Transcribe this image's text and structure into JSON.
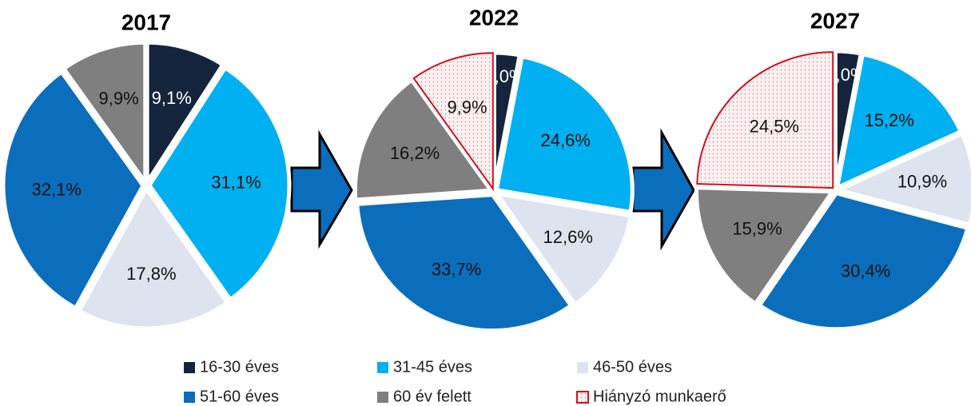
{
  "chart_data": [
    {
      "type": "pie",
      "title": "2017",
      "categories": [
        "16-30 éves",
        "31-45 éves",
        "46-50 éves",
        "51-60 éves",
        "60 év felett"
      ],
      "values": [
        9.1,
        31.1,
        17.8,
        32.1,
        9.9
      ],
      "value_labels": [
        "9,1%",
        "31,1%",
        "17,8%",
        "32,1%",
        "9,9%"
      ],
      "colors": [
        "#14243b",
        "#00b0f0",
        "#dde4ef",
        "#0a6ebd",
        "#7f7f7f"
      ],
      "hatched": [
        false,
        false,
        false,
        false,
        false
      ]
    },
    {
      "type": "pie",
      "title": "2022",
      "categories": [
        "16-30 éves",
        "31-45 éves",
        "46-50 éves",
        "51-60 éves",
        "60 év felett",
        "Hiányzó munkaerő"
      ],
      "values": [
        3.0,
        24.6,
        12.6,
        33.7,
        16.2,
        9.9
      ],
      "value_labels": [
        "3,0%",
        "24,6%",
        "12,6%",
        "33,7%",
        "16,2%",
        "9,9%"
      ],
      "colors": [
        "#14243b",
        "#00b0f0",
        "#dde4ef",
        "#0a6ebd",
        "#7f7f7f",
        "#d0101e"
      ],
      "hatched": [
        false,
        false,
        false,
        false,
        false,
        true
      ]
    },
    {
      "type": "pie",
      "title": "2027",
      "categories": [
        "16-30 éves",
        "31-45 éves",
        "46-50 éves",
        "51-60 éves",
        "60 év felett",
        "Hiányzó munkaerő"
      ],
      "values": [
        3.0,
        15.2,
        10.9,
        30.4,
        15.9,
        24.5
      ],
      "value_labels": [
        "3,0%",
        "15,2%",
        "10,9%",
        "30,4%",
        "15,9%",
        "24,5%"
      ],
      "colors": [
        "#14243b",
        "#00b0f0",
        "#dde4ef",
        "#0a6ebd",
        "#7f7f7f",
        "#d0101e"
      ],
      "hatched": [
        false,
        false,
        false,
        false,
        false,
        true
      ]
    }
  ]
}
